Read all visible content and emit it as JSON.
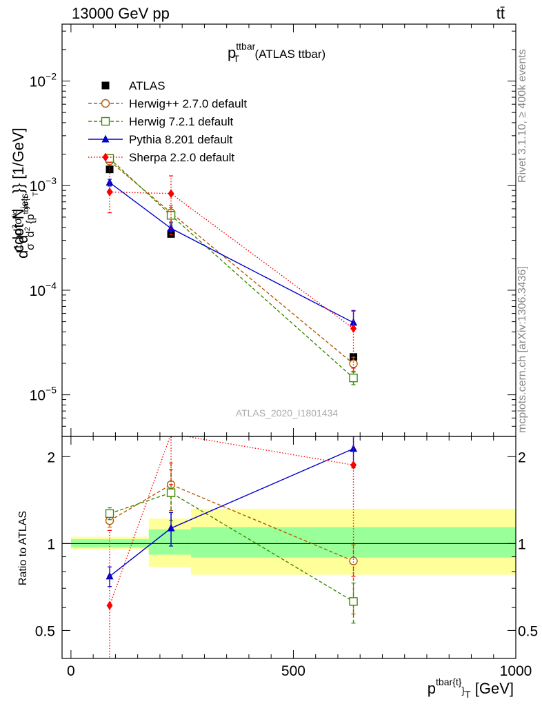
{
  "header": {
    "left": "13000 GeV pp",
    "right": "tt̄"
  },
  "chart_data": [
    {
      "type": "line",
      "panel": "main",
      "title": "p",
      "title_sup": "ttbar",
      "title_sub": "T",
      "title_suffix": " (ATLAS ttbar)",
      "ylabel": "d1/σ d²σᶠⁱᵈ / d² {p_T^tbar{t}} cdot N_jets}} [1/GeV]",
      "ylabel_parts": {
        "p1": "d",
        "p2": "1",
        "p3": "σ",
        "p4": "d",
        "p5": "d",
        "p6": "2",
        "p7": "σ",
        "p8": "fid",
        "p9": "d",
        "p10": "2",
        "p11": " {p",
        "p12": "tbar{t",
        "p13": "T",
        "p14": "cdot N",
        "p15": "jets",
        "p16": "}} [1/GeV]"
      },
      "yscale": "log",
      "ylim": [
        4e-06,
        0.035
      ],
      "yticks": [
        {
          "value": 1e-05,
          "base": "10",
          "exp": "−5"
        },
        {
          "value": 0.0001,
          "base": "10",
          "exp": "−4"
        },
        {
          "value": 0.001,
          "base": "10",
          "exp": "−3"
        },
        {
          "value": 0.01,
          "base": "10",
          "exp": "−2"
        }
      ],
      "xlim": [
        -20,
        1000
      ],
      "watermark": "ATLAS_2020_I1801434",
      "legend_position": "top-left",
      "series": [
        {
          "name": "ATLAS",
          "color": "#000000",
          "marker": "square-filled",
          "linestyle": "none",
          "x": [
            87,
            225,
            635
          ],
          "y": [
            0.00143,
            0.000345,
            2.3e-05
          ],
          "yerr_low": [
            0,
            0,
            0
          ],
          "yerr_high": [
            0,
            0,
            0
          ]
        },
        {
          "name": "Herwig++ 2.7.0 default",
          "color": "#b25a00",
          "marker": "circle-open",
          "linestyle": "dashed",
          "x": [
            87,
            225,
            635
          ],
          "y": [
            0.00172,
            0.00055,
            1.98e-05
          ],
          "yerr_low": [
            0.0001,
            0.0001,
            3e-06
          ],
          "yerr_high": [
            0.0001,
            0.0001,
            3e-06
          ]
        },
        {
          "name": "Herwig 7.2.1 default",
          "color": "#3a8a00",
          "marker": "square-open",
          "linestyle": "dashed",
          "x": [
            87,
            225,
            635
          ],
          "y": [
            0.00182,
            0.00052,
            1.45e-05
          ],
          "yerr_low": [
            0.0001,
            0.0001,
            2e-06
          ],
          "yerr_high": [
            0.0001,
            0.0001,
            2e-06
          ]
        },
        {
          "name": "Pythia 8.201 default",
          "color": "#0000cc",
          "marker": "triangle-filled",
          "linestyle": "solid",
          "x": [
            87,
            225,
            635
          ],
          "y": [
            0.00107,
            0.00039,
            4.9e-05
          ],
          "yerr_low": [
            8e-05,
            5e-05,
            5e-06
          ],
          "yerr_high": [
            8e-05,
            5e-05,
            1.5e-05
          ]
        },
        {
          "name": "Sherpa 2.2.0 default",
          "color": "#ff0000",
          "marker": "diamond-filled",
          "linestyle": "dotted",
          "x": [
            87,
            225,
            635
          ],
          "y": [
            0.00087,
            0.00084,
            4.3e-05
          ],
          "yerr_low": [
            0.00032,
            0.0005,
            2.5e-05
          ],
          "yerr_high": [
            0.0008,
            0.0004,
            2e-05
          ]
        }
      ]
    },
    {
      "type": "line",
      "panel": "ratio",
      "ylabel": "Ratio to ATLAS",
      "yscale": "log",
      "ylim": [
        0.4,
        2.35
      ],
      "yticks": [
        {
          "value": 0.5,
          "label": "0.5"
        },
        {
          "value": 1,
          "label": "1"
        },
        {
          "value": 2,
          "label": "2"
        }
      ],
      "xlim": [
        -20,
        1000
      ],
      "xticks": [
        {
          "value": 0,
          "label": "0"
        },
        {
          "value": 500,
          "label": "500"
        },
        {
          "value": 1000,
          "label": "1000"
        }
      ],
      "xlabel": "p",
      "xlabel_sup": "tbar{t}",
      "xlabel_mid": "}",
      "xlabel_sub": "T",
      "xlabel_suffix": " [GeV]",
      "bands": [
        {
          "x0": 0,
          "x1": 175,
          "inner": [
            0.97,
            1.035
          ],
          "outer": [
            0.955,
            1.055
          ]
        },
        {
          "x0": 175,
          "x1": 270,
          "inner": [
            0.915,
            1.12
          ],
          "outer": [
            0.83,
            1.22
          ]
        },
        {
          "x0": 270,
          "x1": 1000,
          "inner": [
            0.895,
            1.14
          ],
          "outer": [
            0.78,
            1.32
          ]
        }
      ],
      "band_colors": {
        "inner": "#99ff99",
        "outer": "#ffff99"
      },
      "series": [
        {
          "name": "Herwig++ 2.7.0 default",
          "color": "#b25a00",
          "marker": "circle-open",
          "linestyle": "dashed",
          "x": [
            87,
            225,
            635
          ],
          "y": [
            1.2,
            1.6,
            0.87
          ],
          "yerr_low": [
            0.06,
            0.3,
            0.3
          ],
          "yerr_high": [
            0.06,
            0.3,
            0.12
          ]
        },
        {
          "name": "Herwig 7.2.1 default",
          "color": "#3a8a00",
          "marker": "square-open",
          "linestyle": "dashed",
          "x": [
            87,
            225,
            635
          ],
          "y": [
            1.27,
            1.5,
            0.63
          ],
          "yerr_low": [
            0.06,
            0.3,
            0.1
          ],
          "yerr_high": [
            0.06,
            0.3,
            0.1
          ]
        },
        {
          "name": "Pythia 8.201 default",
          "color": "#0000cc",
          "marker": "triangle-filled",
          "linestyle": "solid",
          "x": [
            87,
            225,
            635
          ],
          "y": [
            0.77,
            1.13,
            2.13
          ],
          "yerr_low": [
            0.06,
            0.15,
            0.3
          ],
          "yerr_high": [
            0.06,
            0.15,
            0.3
          ]
        },
        {
          "name": "Sherpa 2.2.0 default",
          "color": "#ff0000",
          "marker": "diamond-filled",
          "linestyle": "dotted",
          "x": [
            87,
            225,
            635
          ],
          "y": [
            0.61,
            2.4,
            1.87
          ],
          "yerr_low": [
            0.3,
            0.8,
            1.1
          ],
          "yerr_high": [
            0.5,
            0.5,
            0.6
          ]
        }
      ]
    }
  ],
  "side_labels": {
    "top": "Rivet 3.1.10, ≥ 400k events",
    "bottom": "mcplots.cern.ch [arXiv:1306.3436]"
  }
}
